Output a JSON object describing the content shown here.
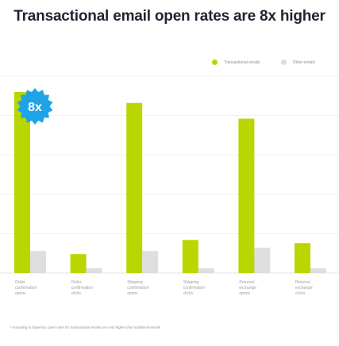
{
  "title": "Transactional email open rates are 8x higher",
  "legend": {
    "transactional": "Transactional emails",
    "other": "Other emails"
  },
  "colors": {
    "transactional": "#b9d600",
    "other": "#dedee0",
    "badge": "#1ea4e6"
  },
  "badge": {
    "text": "8x"
  },
  "footnote": "* According to Experian, open rates for transactional emails are 4-8x higher than traditional emails",
  "chart_data": {
    "type": "bar",
    "title": "Transactional email open rates are 8x higher",
    "categories": [
      [
        "Order",
        "confirmation",
        "opens"
      ],
      [
        "Order",
        "confirmation",
        "clicks"
      ],
      [
        "Shipping",
        "confirmation",
        "opens"
      ],
      [
        "Shipping",
        "confirmation",
        "clicks"
      ],
      [
        "Returns/",
        "exchange",
        "opens"
      ],
      [
        "Returns/",
        "exchange",
        "clicks"
      ]
    ],
    "series": [
      {
        "name": "Transactional emails",
        "values": [
          115,
          12,
          108,
          21,
          98,
          19
        ]
      },
      {
        "name": "Other emails",
        "values": [
          14,
          3,
          14,
          3,
          16,
          3
        ]
      }
    ],
    "ylim": [
      0,
      125
    ],
    "grid": true,
    "legend": "top-right"
  }
}
